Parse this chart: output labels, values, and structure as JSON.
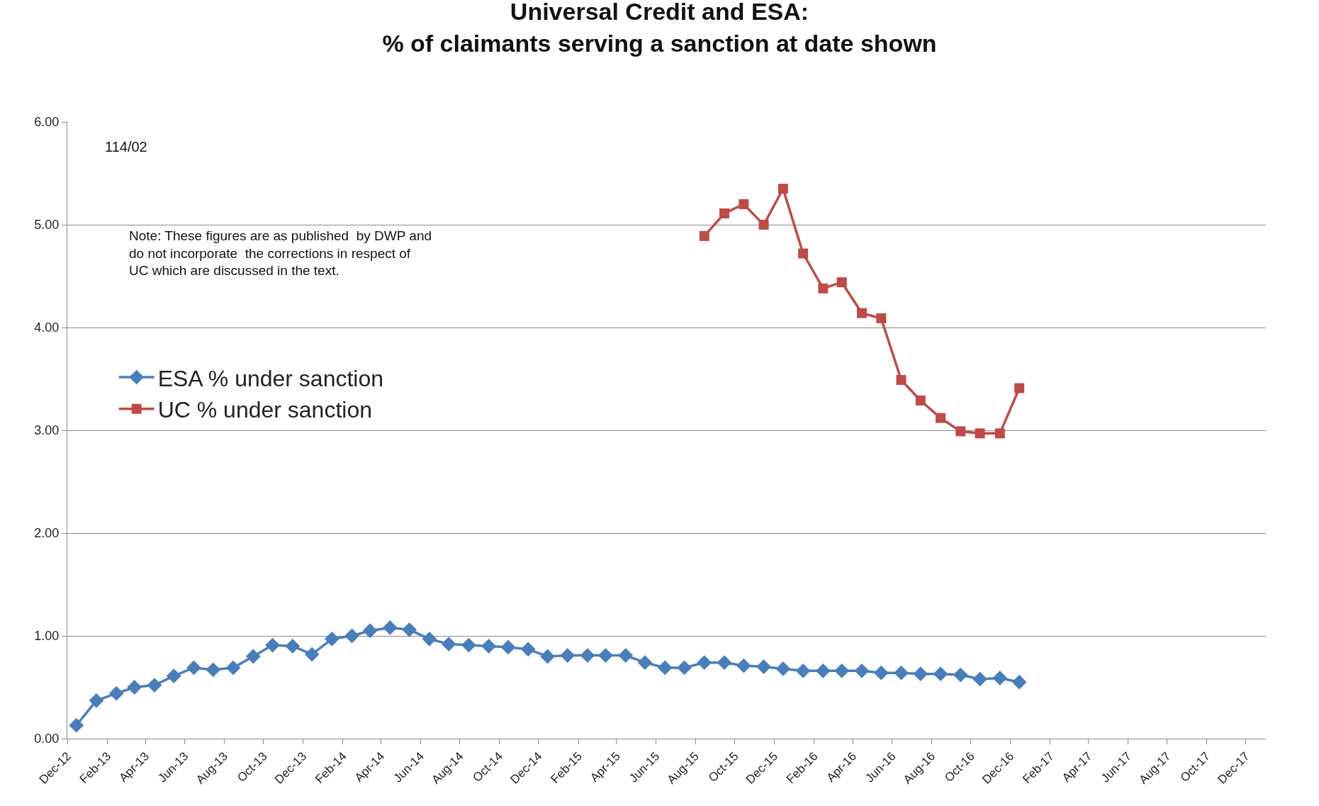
{
  "chart_data": {
    "type": "line",
    "title": "Universal Credit and ESA:\n% of claimants serving a sanction at date shown",
    "series": [
      {
        "name": "ESA % under sanction",
        "color": "#4a7ebb",
        "marker": "diamond",
        "x": [
          "2012-12-15",
          "2013-01-15",
          "2013-02-15",
          "2013-03-15",
          "2013-04-15",
          "2013-05-15",
          "2013-06-15",
          "2013-07-15",
          "2013-08-15",
          "2013-09-15",
          "2013-10-15",
          "2013-11-15",
          "2013-12-15",
          "2014-01-15",
          "2014-02-15",
          "2014-03-15",
          "2014-04-15",
          "2014-05-15",
          "2014-06-15",
          "2014-07-15",
          "2014-08-15",
          "2014-09-15",
          "2014-10-15",
          "2014-11-15",
          "2014-12-15",
          "2015-01-15",
          "2015-02-15",
          "2015-03-15",
          "2015-04-15",
          "2015-05-15",
          "2015-06-15",
          "2015-07-15",
          "2015-08-15",
          "2015-09-15",
          "2015-10-15",
          "2015-11-15",
          "2015-12-15",
          "2016-01-15",
          "2016-02-15",
          "2016-03-15",
          "2016-04-15",
          "2016-05-15",
          "2016-06-15",
          "2016-07-15",
          "2016-08-15",
          "2016-09-15",
          "2016-10-15",
          "2016-11-15",
          "2016-12-15"
        ],
        "values": [
          0.13,
          0.37,
          0.44,
          0.5,
          0.52,
          0.61,
          0.69,
          0.67,
          0.69,
          0.8,
          0.91,
          0.9,
          0.82,
          0.97,
          1.0,
          1.05,
          1.08,
          1.06,
          0.97,
          0.92,
          0.91,
          0.9,
          0.89,
          0.87,
          0.8,
          0.81,
          0.81,
          0.81,
          0.81,
          0.74,
          0.69,
          0.69,
          0.74,
          0.74,
          0.71,
          0.7,
          0.68,
          0.66,
          0.66,
          0.66,
          0.66,
          0.64,
          0.64,
          0.63,
          0.63,
          0.62,
          0.58,
          0.59,
          0.55
        ]
      },
      {
        "name": "UC % under sanction",
        "color": "#be4b48",
        "marker": "square",
        "x": [
          "2015-08-15",
          "2015-09-15",
          "2015-10-15",
          "2015-11-15",
          "2015-12-15",
          "2016-01-15",
          "2016-02-15",
          "2016-03-15",
          "2016-04-15",
          "2016-05-15",
          "2016-06-15",
          "2016-07-15",
          "2016-08-15",
          "2016-09-15",
          "2016-10-15",
          "2016-11-15",
          "2016-12-15"
        ],
        "values": [
          4.89,
          5.11,
          5.2,
          5.0,
          5.35,
          4.72,
          4.38,
          4.44,
          4.14,
          4.09,
          3.49,
          3.29,
          3.12,
          2.99,
          2.97,
          2.97,
          3.41
        ]
      }
    ],
    "xlim": [
      "2012-12-01",
      "2018-01-01"
    ],
    "xticks": [
      {
        "value": "2012-12-01",
        "label": "Dec-12"
      },
      {
        "value": "2013-02-01",
        "label": "Feb-13"
      },
      {
        "value": "2013-04-01",
        "label": "Apr-13"
      },
      {
        "value": "2013-06-01",
        "label": "Jun-13"
      },
      {
        "value": "2013-08-01",
        "label": "Aug-13"
      },
      {
        "value": "2013-10-01",
        "label": "Oct-13"
      },
      {
        "value": "2013-12-01",
        "label": "Dec-13"
      },
      {
        "value": "2014-02-01",
        "label": "Feb-14"
      },
      {
        "value": "2014-04-01",
        "label": "Apr-14"
      },
      {
        "value": "2014-06-01",
        "label": "Jun-14"
      },
      {
        "value": "2014-08-01",
        "label": "Aug-14"
      },
      {
        "value": "2014-10-01",
        "label": "Oct-14"
      },
      {
        "value": "2014-12-01",
        "label": "Dec-14"
      },
      {
        "value": "2015-02-01",
        "label": "Feb-15"
      },
      {
        "value": "2015-04-01",
        "label": "Apr-15"
      },
      {
        "value": "2015-06-01",
        "label": "Jun-15"
      },
      {
        "value": "2015-08-01",
        "label": "Aug-15"
      },
      {
        "value": "2015-10-01",
        "label": "Oct-15"
      },
      {
        "value": "2015-12-01",
        "label": "Dec-15"
      },
      {
        "value": "2016-02-01",
        "label": "Feb-16"
      },
      {
        "value": "2016-04-01",
        "label": "Apr-16"
      },
      {
        "value": "2016-06-01",
        "label": "Jun-16"
      },
      {
        "value": "2016-08-01",
        "label": "Aug-16"
      },
      {
        "value": "2016-10-01",
        "label": "Oct-16"
      },
      {
        "value": "2016-12-01",
        "label": "Dec-16"
      },
      {
        "value": "2017-02-01",
        "label": "Feb-17"
      },
      {
        "value": "2017-04-01",
        "label": "Apr-17"
      },
      {
        "value": "2017-06-01",
        "label": "Jun-17"
      },
      {
        "value": "2017-08-01",
        "label": "Aug-17"
      },
      {
        "value": "2017-10-01",
        "label": "Oct-17"
      },
      {
        "value": "2017-12-01",
        "label": "Dec-17"
      }
    ],
    "ylim": [
      0,
      6
    ],
    "yticks": [
      {
        "value": 0,
        "label": "0.00"
      },
      {
        "value": 1,
        "label": "1.00"
      },
      {
        "value": 2,
        "label": "2.00"
      },
      {
        "value": 3,
        "label": "3.00"
      },
      {
        "value": 4,
        "label": "4.00"
      },
      {
        "value": 5,
        "label": "5.00"
      },
      {
        "value": 6,
        "label": "6.00"
      }
    ],
    "grid": "y",
    "legend": "left",
    "annotations": [
      "114/02",
      "Note: These figures are as published  by DWP and\ndo not incorporate  the corrections in respect of\nUC which are discussed in the text."
    ]
  }
}
